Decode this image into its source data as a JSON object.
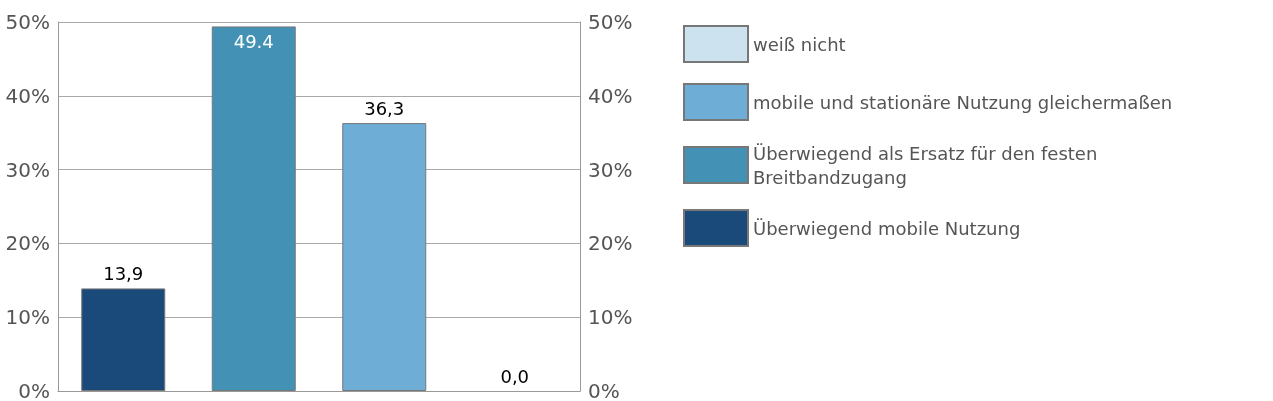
{
  "chart_data": {
    "type": "bar",
    "categories": [
      null,
      null,
      null,
      null
    ],
    "series": [
      {
        "name": "weiß nicht",
        "color": "#cce2ee",
        "values": [
          null,
          null,
          null,
          0.0
        ],
        "value_labels": [
          null,
          null,
          null,
          "0,0"
        ]
      },
      {
        "name": "mobile und stationäre Nutzung gleichermaßen",
        "color": "#6eadd6",
        "values": [
          null,
          null,
          36.3,
          null
        ],
        "value_labels": [
          null,
          null,
          "36,3",
          null
        ]
      },
      {
        "name": "Überwiegend als Ersatz für den festen Breitbandzugang",
        "color": "#4392b5",
        "values": [
          null,
          49.4,
          null,
          null
        ],
        "value_labels": [
          null,
          "49.4",
          null,
          null
        ]
      },
      {
        "name": "Überwiegend mobile Nutzung",
        "color": "#1a4a7a",
        "values": [
          13.9,
          null,
          null,
          null
        ],
        "value_labels": [
          "13,9",
          null,
          null,
          null
        ]
      }
    ],
    "ylim": [
      0,
      50
    ],
    "yticks": [
      {
        "value": 0,
        "label": "0%"
      },
      {
        "value": 10,
        "label": "10%"
      },
      {
        "value": 20,
        "label": "20%"
      },
      {
        "value": 30,
        "label": "30%"
      },
      {
        "value": 40,
        "label": "40%"
      },
      {
        "value": 50,
        "label": "50%"
      }
    ],
    "y2lim": [
      0,
      50
    ],
    "y2ticks": [
      {
        "value": 0,
        "label": "0%"
      },
      {
        "value": 10,
        "label": "10%"
      },
      {
        "value": 20,
        "label": "20%"
      },
      {
        "value": 30,
        "label": "30%"
      },
      {
        "value": 40,
        "label": "40%"
      },
      {
        "value": 50,
        "label": "50%"
      }
    ],
    "grid": "y",
    "legend": "right",
    "tick_labels": "y"
  }
}
